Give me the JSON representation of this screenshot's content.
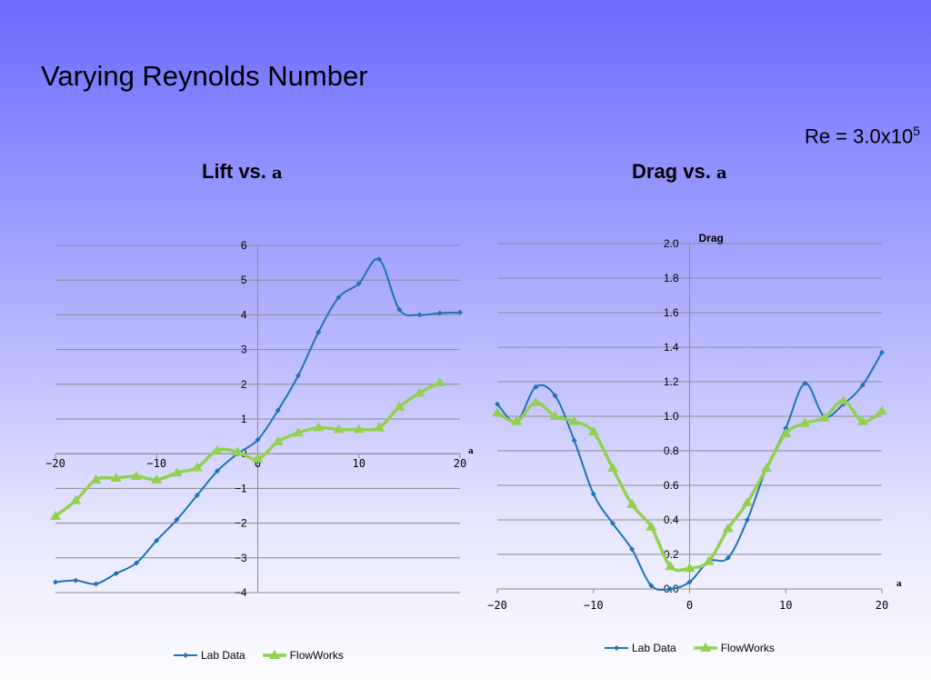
{
  "slide": {
    "title": "Varying Reynolds Number",
    "re_prefix": "Re = 3.0x10",
    "re_exponent": "5"
  },
  "colors": {
    "lab": "#1f73b7",
    "flow": "#92d050",
    "grid": "#8c8c8c"
  },
  "chart_data": [
    {
      "type": "line",
      "title": "Lift vs. ",
      "title_symbol": "a",
      "xlabel": "a",
      "ylabel": "",
      "xlim": [
        -20,
        20
      ],
      "ylim": [
        -4,
        6
      ],
      "xticks": [
        -20,
        -10,
        0,
        10,
        20
      ],
      "yticks": [
        -4,
        -3,
        -2,
        -1,
        0,
        1,
        2,
        3,
        4,
        5,
        6
      ],
      "ytick_decimals": 0,
      "grid": true,
      "legend": "bottom",
      "series": [
        {
          "name": "Lab Data",
          "x": [
            -20,
            -18,
            -16,
            -14,
            -12,
            -10,
            -8,
            -6,
            -4,
            -2,
            0,
            2,
            4,
            6,
            8,
            10,
            12,
            14,
            16,
            18,
            20
          ],
          "y": [
            -3.7,
            -3.65,
            -3.75,
            -3.45,
            -3.15,
            -2.5,
            -1.9,
            -1.2,
            -0.5,
            0,
            0.4,
            1.25,
            2.25,
            3.5,
            4.5,
            4.9,
            5.6,
            4.15,
            4.0,
            4.05,
            4.07
          ]
        },
        {
          "name": "FlowWorks",
          "x": [
            -20,
            -18,
            -16,
            -14,
            -12,
            -10,
            -8,
            -6,
            -4,
            -2,
            0,
            2,
            4,
            6,
            8,
            10,
            12,
            14,
            16,
            18
          ],
          "y": [
            -1.8,
            -1.35,
            -0.75,
            -0.7,
            -0.65,
            -0.75,
            -0.55,
            -0.4,
            0.1,
            0.05,
            -0.15,
            0.35,
            0.6,
            0.75,
            0.7,
            0.7,
            0.75,
            1.35,
            1.75,
            2.05
          ]
        }
      ]
    },
    {
      "type": "line",
      "title": "Drag vs. ",
      "title_symbol": "a",
      "xlabel": "a",
      "ylabel": "Drag",
      "xlim": [
        -20,
        20
      ],
      "ylim": [
        0,
        2
      ],
      "xticks": [
        -20,
        -10,
        0,
        10,
        20
      ],
      "yticks": [
        0,
        0.2,
        0.4,
        0.6,
        0.8,
        1.0,
        1.2,
        1.4,
        1.6,
        1.8,
        2.0
      ],
      "ytick_decimals": 1,
      "grid": true,
      "legend": "bottom",
      "series": [
        {
          "name": "Lab Data",
          "x": [
            -20,
            -18,
            -16,
            -14,
            -12,
            -10,
            -8,
            -6,
            -4,
            -2,
            0,
            2,
            4,
            6,
            8,
            10,
            12,
            14,
            16,
            18,
            20
          ],
          "y": [
            1.07,
            0.97,
            1.17,
            1.12,
            0.86,
            0.55,
            0.38,
            0.23,
            0.02,
            0.0,
            0.04,
            0.16,
            0.18,
            0.4,
            0.7,
            0.93,
            1.19,
            1.0,
            1.07,
            1.18,
            1.37
          ]
        },
        {
          "name": "FlowWorks",
          "x": [
            -20,
            -18,
            -16,
            -14,
            -12,
            -10,
            -8,
            -6,
            -4,
            -2,
            0,
            2,
            4,
            6,
            8,
            10,
            12,
            14,
            16,
            18,
            20
          ],
          "y": [
            1.02,
            0.97,
            1.08,
            1.0,
            0.97,
            0.91,
            0.7,
            0.49,
            0.36,
            0.13,
            0.12,
            0.16,
            0.35,
            0.5,
            0.7,
            0.9,
            0.96,
            0.99,
            1.09,
            0.97,
            1.03
          ]
        }
      ]
    }
  ]
}
